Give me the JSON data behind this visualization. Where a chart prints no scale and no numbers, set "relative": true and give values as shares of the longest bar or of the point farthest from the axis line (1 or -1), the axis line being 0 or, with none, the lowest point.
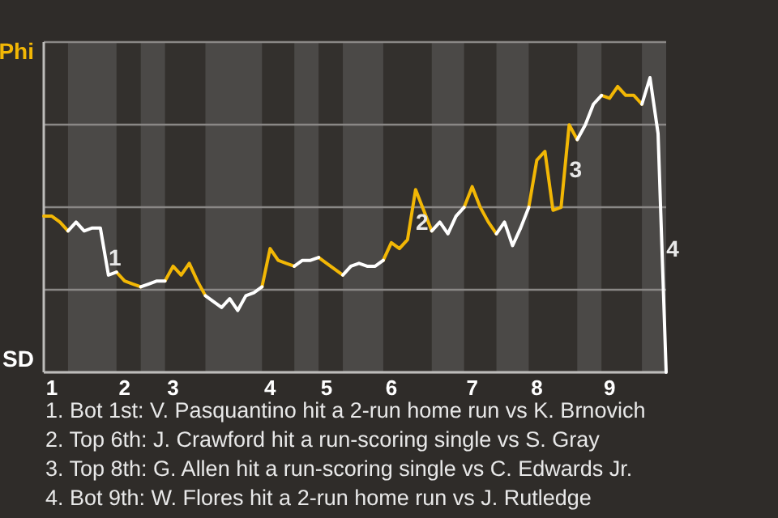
{
  "chart_data": {
    "type": "line",
    "relative": true,
    "categories": [
      null,
      "1",
      null,
      null,
      null,
      null,
      null,
      null,
      null,
      null,
      "2",
      null,
      null,
      null,
      null,
      null,
      "3",
      null,
      null,
      null,
      null,
      null,
      null,
      null,
      null,
      null,
      null,
      null,
      "4",
      null,
      null,
      null,
      null,
      null,
      null,
      "5",
      null,
      null,
      null,
      null,
      null,
      null,
      null,
      "6",
      null,
      null,
      null,
      null,
      null,
      null,
      null,
      null,
      null,
      "7",
      null,
      null,
      null,
      null,
      null,
      null,
      null,
      "8",
      null,
      null,
      null,
      null,
      null,
      null,
      null,
      null,
      "9",
      null,
      null,
      null,
      null,
      null,
      null,
      null
    ],
    "grid": "y",
    "marker": "none",
    "line_style": "solid",
    "series": [
      {
        "color": "#f2b705",
        "values": [
          0.53,
          0.53,
          0.51,
          0.48,
          null,
          null,
          null,
          null,
          null,
          0.34,
          0.31,
          0.3,
          0.29,
          null,
          null,
          0.31,
          0.36,
          0.33,
          0.37,
          0.31,
          0.26,
          null,
          null,
          null,
          null,
          null,
          null,
          0.29,
          0.42,
          0.38,
          0.37,
          0.36,
          null,
          null,
          0.39,
          0.37,
          0.35,
          0.33,
          null,
          null,
          null,
          null,
          0.38,
          0.44,
          0.42,
          0.45,
          0.62,
          0.55,
          0.48,
          null,
          null,
          null,
          0.56,
          0.63,
          0.56,
          0.51,
          0.47,
          null,
          null,
          null,
          0.56,
          0.72,
          0.75,
          0.55,
          0.56,
          0.84,
          0.79,
          null,
          null,
          0.94,
          0.93,
          0.97,
          0.94,
          0.94,
          0.91,
          null,
          null,
          null
        ]
      },
      {
        "color": "#ffffff",
        "values": [
          null,
          null,
          null,
          0.48,
          0.51,
          0.48,
          0.49,
          0.49,
          0.33,
          0.34,
          null,
          null,
          0.29,
          0.3,
          0.31,
          0.31,
          null,
          null,
          null,
          null,
          0.26,
          0.24,
          0.22,
          0.25,
          0.21,
          0.26,
          0.27,
          0.29,
          null,
          null,
          null,
          0.36,
          0.38,
          0.38,
          0.39,
          null,
          null,
          0.33,
          0.36,
          0.37,
          0.36,
          0.36,
          0.38,
          null,
          null,
          null,
          null,
          null,
          0.48,
          0.51,
          0.47,
          0.53,
          0.56,
          null,
          null,
          null,
          0.47,
          0.51,
          0.43,
          0.49,
          0.56,
          null,
          null,
          null,
          null,
          null,
          0.79,
          0.84,
          0.91,
          0.94,
          null,
          null,
          null,
          null,
          0.91,
          1,
          0.81,
          0
        ]
      }
    ],
    "annotations": [
      "Phi",
      "SD",
      "1",
      "2",
      "3",
      "4",
      "1. Bot 1st: V. Pasquantino hit a 2-run home run vs K. Brnovich",
      "2. Top 6th: J. Crawford hit a run-scoring single vs S. Gray",
      "3. Top 8th: G. Allen hit a run-scoring single vs C. Edwards Jr.",
      "4. Bot 9th: W. Flores hit a 2-run home run vs J. Rutledge"
    ]
  }
}
